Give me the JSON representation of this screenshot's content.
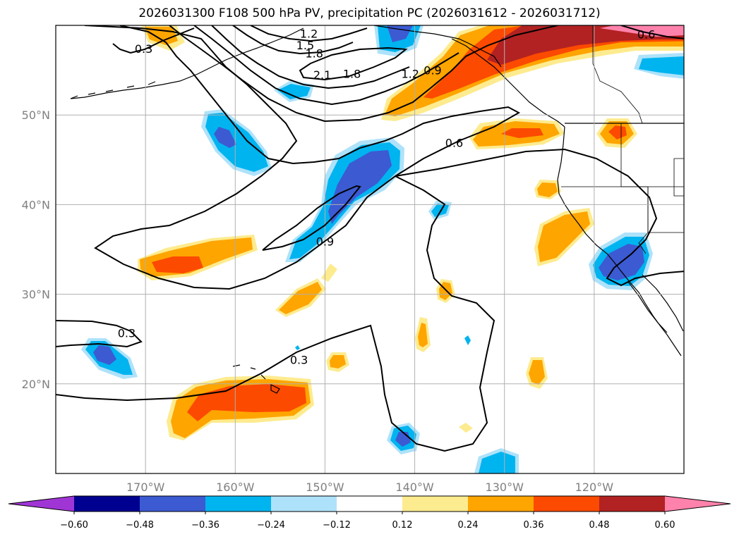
{
  "title": "2026031300 F108 500 hPa PV, precipitation PC (2026031612 - 2026031712)",
  "map": {
    "lon_range": [
      -180,
      -110
    ],
    "lat_range": [
      10,
      60
    ],
    "lat_ticks": [
      {
        "value": 50,
        "label": "50°N"
      },
      {
        "value": 40,
        "label": "40°N"
      },
      {
        "value": 30,
        "label": "30°N"
      },
      {
        "value": 20,
        "label": "20°N"
      }
    ],
    "lon_ticks": [
      {
        "value": -170,
        "label": "170°W"
      },
      {
        "value": -160,
        "label": "160°W"
      },
      {
        "value": -150,
        "label": "150°W"
      },
      {
        "value": -140,
        "label": "140°W"
      },
      {
        "value": -130,
        "label": "130°W"
      },
      {
        "value": -120,
        "label": "120°W"
      }
    ],
    "grid": true
  },
  "contour_labels": [
    {
      "text": "0.3",
      "lon": -170.2,
      "lat": 57.4
    },
    {
      "text": "1.2",
      "lon": -151.8,
      "lat": 59.1
    },
    {
      "text": "1.5",
      "lon": -152.2,
      "lat": 57.8
    },
    {
      "text": "1.8",
      "lon": -151.2,
      "lat": 56.9
    },
    {
      "text": "2.1",
      "lon": -150.3,
      "lat": 54.5
    },
    {
      "text": "1.8",
      "lon": -147.0,
      "lat": 54.6
    },
    {
      "text": "1.2",
      "lon": -140.5,
      "lat": 54.6
    },
    {
      "text": "0.9",
      "lon": -138.0,
      "lat": 55.0
    },
    {
      "text": "0.6",
      "lon": -114.2,
      "lat": 59.0
    },
    {
      "text": "0.6",
      "lon": -135.6,
      "lat": 46.9
    },
    {
      "text": "0.9",
      "lon": -150.0,
      "lat": 35.9
    },
    {
      "text": "0.3",
      "lon": -172.1,
      "lat": 25.7
    },
    {
      "text": "0.3",
      "lon": -152.9,
      "lat": 22.7
    }
  ],
  "colorbar": {
    "colors": [
      "#a035d6",
      "#000090",
      "#3c5ad2",
      "#00b4f0",
      "#aee2fa",
      "#ffffff",
      "#fdeb8f",
      "#fea500",
      "#fc4a00",
      "#b22222",
      "#ff82ac"
    ],
    "tick_labels": [
      "−0.60",
      "−0.48",
      "−0.36",
      "−0.24",
      "−0.12",
      "0.12",
      "0.24",
      "0.36",
      "0.48",
      "0.60"
    ]
  }
}
